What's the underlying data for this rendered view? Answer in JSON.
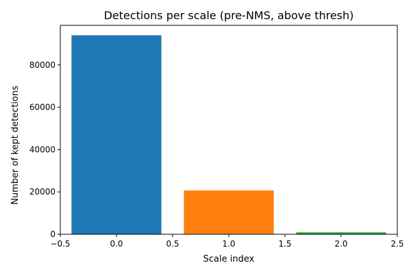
{
  "chart_data": {
    "type": "bar",
    "title": "Detections per scale (pre-NMS, above thresh)",
    "xlabel": "Scale index",
    "ylabel": "Number of kept detections",
    "x": [
      0,
      1,
      2
    ],
    "values": [
      94000,
      20700,
      900
    ],
    "bar_width": 0.8,
    "colors": [
      "#1f77b4",
      "#ff7f0e",
      "#2ca02c"
    ],
    "xlim": [
      -0.5,
      2.5
    ],
    "ylim": [
      0,
      98700
    ],
    "x_ticks": [
      -0.5,
      0.0,
      0.5,
      1.0,
      1.5,
      2.0,
      2.5
    ],
    "x_tick_labels": [
      "−0.5",
      "0.0",
      "0.5",
      "1.0",
      "1.5",
      "2.0",
      "2.5"
    ],
    "y_ticks": [
      0,
      20000,
      40000,
      60000,
      80000
    ],
    "y_tick_labels": [
      "0",
      "20000",
      "40000",
      "60000",
      "80000"
    ],
    "grid": false,
    "legend": "none"
  }
}
